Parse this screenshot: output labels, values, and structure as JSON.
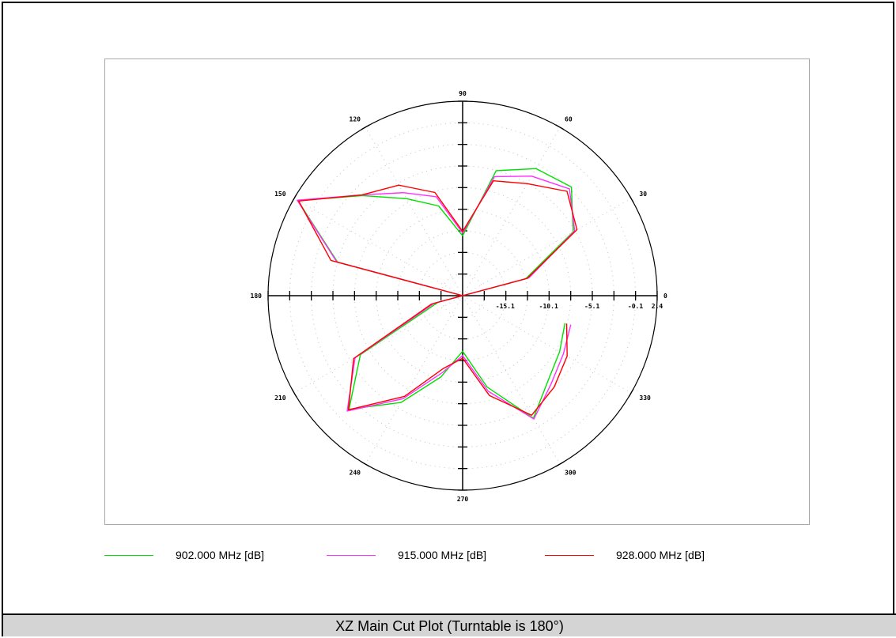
{
  "caption": "XZ Main Cut Plot (Turntable is 180°)",
  "chart_data": {
    "type": "polar-line",
    "title": "",
    "angle_unit": "degrees",
    "angle_direction": "counterclockwise, 0 at right",
    "angle_labels": [
      "0",
      "30",
      "60",
      "90",
      "120",
      "150",
      "180",
      "210",
      "240",
      "270",
      "300",
      "330"
    ],
    "radial_labels": [
      "-15.1",
      "-10.1",
      "-5.1",
      "-0.1",
      "2.4"
    ],
    "radial_label_values": [
      -15.1,
      -10.1,
      -5.1,
      -0.1,
      2.4
    ],
    "radial_range": [
      -20,
      2.4
    ],
    "radial_unit": "dB",
    "grid": true,
    "legend_position": "bottom",
    "series": [
      {
        "name": "902.000 MHz [dB]",
        "color": "#00e000",
        "points": [
          {
            "angle": 0,
            "value": -20
          },
          {
            "angle": 15,
            "value": -12.5
          },
          {
            "angle": 30,
            "value": -5.3
          },
          {
            "angle": 45,
            "value": -2.3
          },
          {
            "angle": 60,
            "value": -3.1
          },
          {
            "angle": 75,
            "value": -5.1
          },
          {
            "angle": 90,
            "value": -13.1
          },
          {
            "angle": 105,
            "value": -9.3
          },
          {
            "angle": 120,
            "value": -7.1
          },
          {
            "angle": 135,
            "value": -3.7
          },
          {
            "angle": 150,
            "value": 1.9
          },
          {
            "angle": 165,
            "value": -5.1
          },
          {
            "angle": 180,
            "value": -20
          },
          {
            "angle": 195,
            "value": -17.1
          },
          {
            "angle": 210,
            "value": -6.4
          },
          {
            "angle": 225,
            "value": -1.5
          },
          {
            "angle": 240,
            "value": -5.8
          },
          {
            "angle": 255,
            "value": -10.3
          },
          {
            "angle": 270,
            "value": -13.6
          },
          {
            "angle": 285,
            "value": -9.1
          },
          {
            "angle": 300,
            "value": -3.7
          },
          {
            "angle": 315,
            "value": -6.1
          },
          {
            "angle": 330,
            "value": -7.1
          },
          {
            "angle": 345,
            "value": -7.8
          }
        ]
      },
      {
        "name": "915.000 MHz [dB]",
        "color": "#ff30ff",
        "points": [
          {
            "angle": 0,
            "value": -20
          },
          {
            "angle": 15,
            "value": -12.1
          },
          {
            "angle": 30,
            "value": -5.1
          },
          {
            "angle": 45,
            "value": -2.6
          },
          {
            "angle": 60,
            "value": -4.1
          },
          {
            "angle": 75,
            "value": -5.8
          },
          {
            "angle": 90,
            "value": -12.8
          },
          {
            "angle": 105,
            "value": -8.2
          },
          {
            "angle": 120,
            "value": -6.3
          },
          {
            "angle": 135,
            "value": -3.6
          },
          {
            "angle": 150,
            "value": 2.0
          },
          {
            "angle": 165,
            "value": -5.0
          },
          {
            "angle": 180,
            "value": -20
          },
          {
            "angle": 195,
            "value": -16.6
          },
          {
            "angle": 210,
            "value": -5.7
          },
          {
            "angle": 225,
            "value": -1.2
          },
          {
            "angle": 240,
            "value": -6.3
          },
          {
            "angle": 255,
            "value": -10.8
          },
          {
            "angle": 270,
            "value": -13.1
          },
          {
            "angle": 285,
            "value": -8.6
          },
          {
            "angle": 300,
            "value": -3.6
          },
          {
            "angle": 315,
            "value": -5.6
          },
          {
            "angle": 330,
            "value": -6.6
          },
          {
            "angle": 345,
            "value": -7.1
          }
        ]
      },
      {
        "name": "928.000 MHz [dB]",
        "color": "#ff0000",
        "points": [
          {
            "angle": 0,
            "value": -20
          },
          {
            "angle": 15,
            "value": -12.3
          },
          {
            "angle": 30,
            "value": -4.8
          },
          {
            "angle": 45,
            "value": -3.0
          },
          {
            "angle": 60,
            "value": -5.1
          },
          {
            "angle": 75,
            "value": -6.3
          },
          {
            "angle": 90,
            "value": -12.6
          },
          {
            "angle": 105,
            "value": -7.7
          },
          {
            "angle": 120,
            "value": -5.3
          },
          {
            "angle": 135,
            "value": -3.6
          },
          {
            "angle": 150,
            "value": 1.8
          },
          {
            "angle": 165,
            "value": -4.3
          },
          {
            "angle": 180,
            "value": -20
          },
          {
            "angle": 195,
            "value": -16.3
          },
          {
            "angle": 210,
            "value": -5.5
          },
          {
            "angle": 225,
            "value": -1.4
          },
          {
            "angle": 240,
            "value": -6.6
          },
          {
            "angle": 255,
            "value": -11.3
          },
          {
            "angle": 270,
            "value": -12.8
          },
          {
            "angle": 285,
            "value": -8.1
          },
          {
            "angle": 300,
            "value": -4.1
          },
          {
            "angle": 315,
            "value": -5.1
          },
          {
            "angle": 330,
            "value": -6.1
          },
          {
            "angle": 345,
            "value": -7.6
          }
        ]
      }
    ]
  }
}
